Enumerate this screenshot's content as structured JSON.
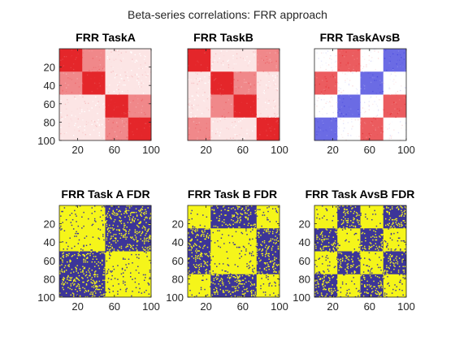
{
  "chart_data": {
    "type": "heatmap",
    "suptitle": "Beta-series correlations: FRR approach",
    "colors": {
      "red": "#e4262a",
      "light_red": "#f4a6a6",
      "pale_red": "#fbe1e1",
      "blue": "#3a3adb",
      "mid_blue": "#8a8aeb",
      "pale_blue": "#e8e8fb",
      "fdr_blue": "#3c3599",
      "fdr_yellow": "#f5f51a"
    },
    "grid": "off",
    "panels": [
      {
        "title": "FRR TaskA",
        "matrix_size": 100,
        "block_boundaries": [
          0,
          25,
          50,
          75,
          100
        ],
        "block_values": [
          [
            1.0,
            0.55,
            0.12,
            0.12
          ],
          [
            0.55,
            1.0,
            0.12,
            0.12
          ],
          [
            0.12,
            0.12,
            1.0,
            0.55
          ],
          [
            0.12,
            0.12,
            0.55,
            1.0
          ]
        ],
        "colormap": "white-red",
        "xticks": [
          "20",
          "60",
          "100"
        ],
        "xtick_values": [
          20,
          60,
          100
        ],
        "yticks": [
          "20",
          "40",
          "60",
          "80",
          "100"
        ],
        "ytick_values": [
          20,
          40,
          60,
          80,
          100
        ]
      },
      {
        "title": "FRR TaskB",
        "matrix_size": 100,
        "block_boundaries": [
          0,
          25,
          50,
          75,
          100
        ],
        "block_values": [
          [
            1.0,
            0.12,
            0.12,
            0.55
          ],
          [
            0.12,
            1.0,
            0.55,
            0.12
          ],
          [
            0.12,
            0.55,
            1.0,
            0.12
          ],
          [
            0.55,
            0.12,
            0.12,
            1.0
          ]
        ],
        "colormap": "white-red",
        "xticks": [
          "20",
          "60",
          "100"
        ],
        "xtick_values": [
          20,
          60,
          100
        ],
        "yticks": [],
        "ytick_values": []
      },
      {
        "title": "FRR TaskAvsB",
        "matrix_size": 100,
        "block_boundaries": [
          0,
          25,
          50,
          75,
          100
        ],
        "block_values": [
          [
            0.0,
            0.75,
            0.0,
            -0.75
          ],
          [
            0.75,
            0.0,
            -0.75,
            0.0
          ],
          [
            0.0,
            -0.75,
            0.0,
            0.75
          ],
          [
            -0.75,
            0.0,
            0.75,
            0.0
          ]
        ],
        "colormap": "blue-white-red",
        "xticks": [
          "20",
          "60",
          "100"
        ],
        "xtick_values": [
          20,
          60,
          100
        ],
        "yticks": [],
        "ytick_values": []
      },
      {
        "title": "FRR Task A FDR",
        "matrix_size": 100,
        "block_boundaries": [
          0,
          25,
          50,
          75,
          100
        ],
        "block_values": [
          [
            1,
            1,
            0,
            0
          ],
          [
            1,
            1,
            0,
            0
          ],
          [
            0,
            0,
            1,
            1
          ],
          [
            0,
            0,
            1,
            1
          ]
        ],
        "colormap": "binary-blue-yellow",
        "xticks": [
          "20",
          "60",
          "100"
        ],
        "xtick_values": [
          20,
          60,
          100
        ],
        "yticks": [
          "20",
          "40",
          "60",
          "80",
          "100"
        ],
        "ytick_values": [
          20,
          40,
          60,
          80,
          100
        ]
      },
      {
        "title": "FRR Task B FDR",
        "matrix_size": 100,
        "block_boundaries": [
          0,
          25,
          50,
          75,
          100
        ],
        "block_values": [
          [
            1,
            0,
            0,
            1
          ],
          [
            0,
            1,
            1,
            0
          ],
          [
            0,
            1,
            1,
            0
          ],
          [
            1,
            0,
            0,
            1
          ]
        ],
        "colormap": "binary-blue-yellow",
        "xticks": [
          "20",
          "60",
          "100"
        ],
        "xtick_values": [
          20,
          60,
          100
        ],
        "yticks": [
          "20",
          "40",
          "60",
          "80",
          "100"
        ],
        "ytick_values": [
          20,
          40,
          60,
          80,
          100
        ]
      },
      {
        "title": "FRR Task AvsB FDR",
        "matrix_size": 100,
        "block_boundaries": [
          0,
          25,
          50,
          75,
          100
        ],
        "block_values": [
          [
            1,
            0,
            1,
            0
          ],
          [
            0,
            1,
            0,
            1
          ],
          [
            1,
            0,
            1,
            0
          ],
          [
            0,
            1,
            0,
            1
          ]
        ],
        "colormap": "binary-blue-yellow",
        "xticks": [
          "20",
          "60",
          "100"
        ],
        "xtick_values": [
          20,
          60,
          100
        ],
        "yticks": [
          "20",
          "40",
          "60",
          "80",
          "100"
        ],
        "ytick_values": [
          20,
          40,
          60,
          80,
          100
        ]
      }
    ]
  }
}
